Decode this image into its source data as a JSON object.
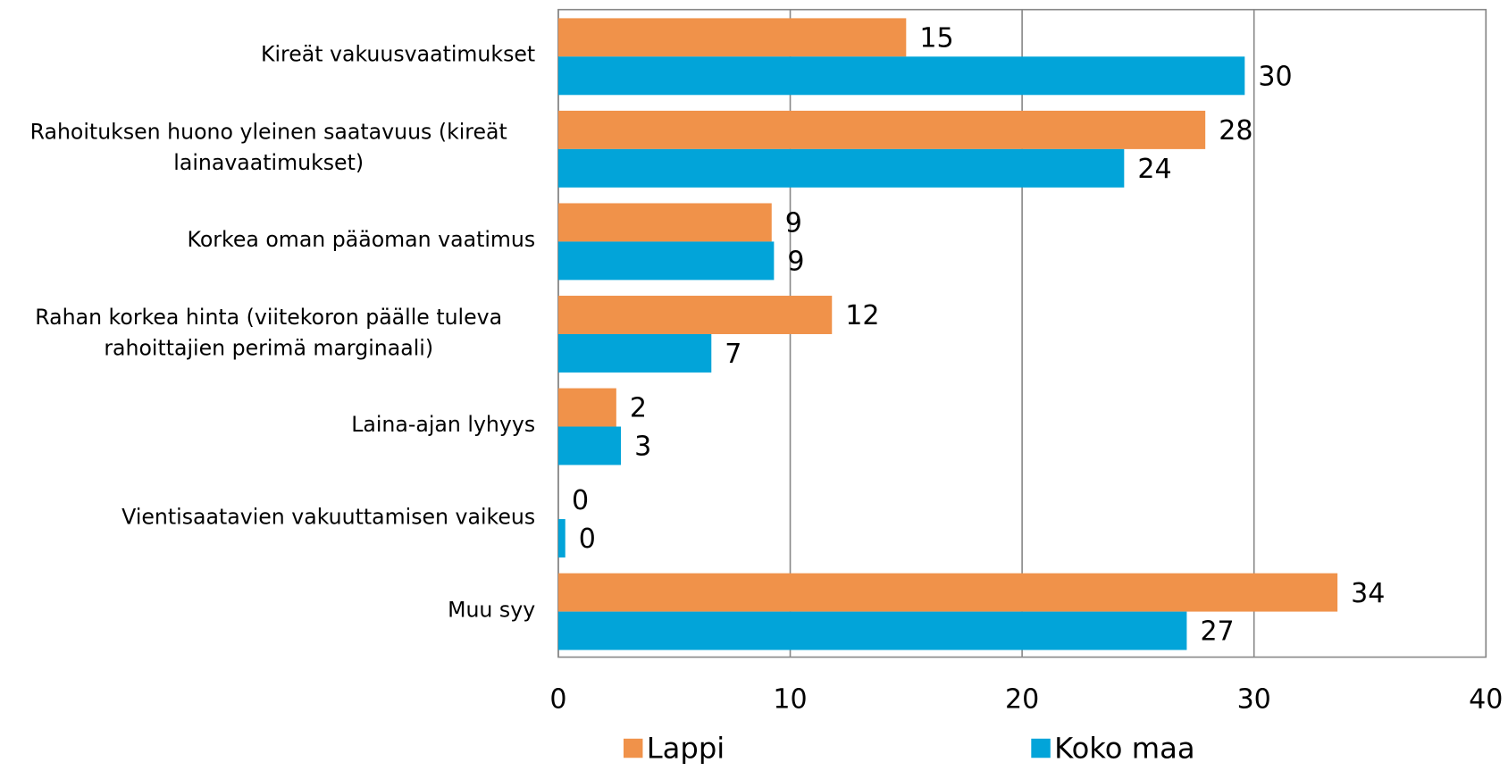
{
  "chart_data": {
    "type": "barh",
    "categories": [
      "Kireät vakuusvaatimukset",
      "Rahoituksen huono yleinen saatavuus (kireät lainavaatimukset)",
      "Korkea oman pääoman vaatimus",
      "Rahan korkea hinta (viitekoron päälle tuleva rahoittajien perimä marginaali)",
      "Laina-ajan lyhyys",
      "Vientisaatavien vakuuttamisen vaikeus",
      "Muu syy"
    ],
    "series": [
      {
        "name": "Lappi",
        "color": "#f0924a",
        "values": [
          15,
          27.9,
          9.2,
          11.8,
          2.5,
          0,
          33.6
        ],
        "value_labels": [
          "15",
          "28",
          "9",
          "12",
          "2",
          "0",
          "34"
        ]
      },
      {
        "name": "Koko maa",
        "color": "#02a4d9",
        "values": [
          29.6,
          24.4,
          9.3,
          6.6,
          2.7,
          0.3,
          27.1
        ],
        "value_labels": [
          "30",
          "24",
          "9",
          "7",
          "3",
          "0",
          "27"
        ]
      }
    ],
    "xlim": [
      0,
      40
    ],
    "xticks": [
      0,
      10,
      20,
      30,
      40
    ],
    "grid": true,
    "legend": "bottom"
  }
}
